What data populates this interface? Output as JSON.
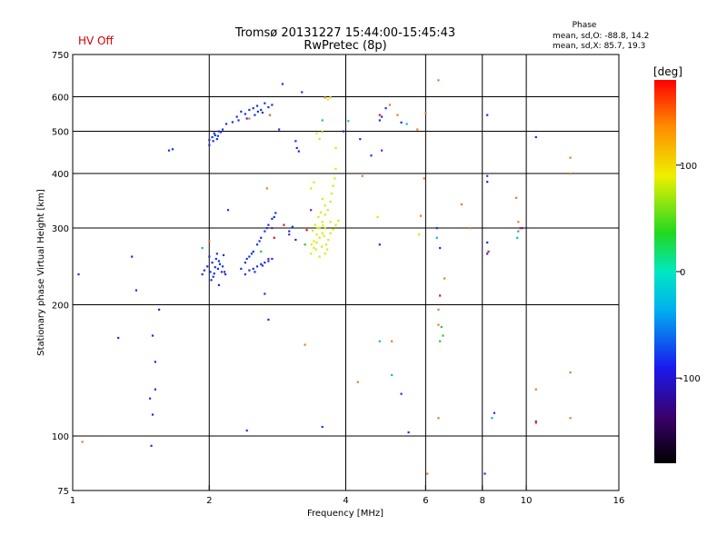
{
  "header": {
    "status": "HV Off",
    "status_color": "#d40000",
    "title_line1": "Tromsø 20131227 15:44:00-15:45:43",
    "title_line2": "RwPretec (8p)",
    "phase_title": "Phase",
    "phase_o": "mean, sd,O: -88.8, 14.2",
    "phase_x": "mean, sd,X:  85.7, 19.3"
  },
  "chart_data": {
    "type": "scatter",
    "xlabel": "Frequency [MHz]",
    "ylabel": "Stationary phase Virtual Height [km]",
    "x_scale": "log2",
    "y_scale": "log",
    "xlim": [
      1,
      16
    ],
    "ylim": [
      75,
      750
    ],
    "x_ticks": [
      1,
      2,
      4,
      6,
      8,
      10,
      16
    ],
    "y_ticks": [
      75,
      100,
      200,
      300,
      400,
      500,
      600,
      750
    ],
    "x_grid": [
      2,
      4,
      6,
      8,
      10
    ],
    "y_grid": [
      100,
      200,
      300,
      400,
      500,
      600
    ],
    "colorbar": {
      "label": "[deg]",
      "ticks": [
        100,
        0,
        -100
      ],
      "range": [
        -180,
        180
      ]
    },
    "series": [
      {
        "color": "#1530e0",
        "points": [
          [
            1.03,
            235
          ],
          [
            1.26,
            168
          ],
          [
            1.35,
            258
          ],
          [
            1.38,
            216
          ],
          [
            1.49,
            95
          ],
          [
            1.5,
            170
          ],
          [
            1.5,
            112
          ],
          [
            1.52,
            148
          ],
          [
            1.52,
            128
          ],
          [
            1.48,
            122
          ],
          [
            1.55,
            195
          ],
          [
            1.63,
            452
          ],
          [
            1.66,
            455
          ],
          [
            1.93,
            235
          ],
          [
            1.95,
            240
          ],
          [
            1.98,
            245
          ],
          [
            2.01,
            238
          ],
          [
            2.03,
            250
          ],
          [
            2.05,
            236
          ],
          [
            2.07,
            255
          ],
          [
            2.09,
            242
          ],
          [
            2.11,
            248
          ],
          [
            2.13,
            238
          ],
          [
            2.15,
            260
          ],
          [
            2.17,
            235
          ],
          [
            2.0,
            258
          ],
          [
            2.04,
            232
          ],
          [
            2.1,
            252
          ],
          [
            2.14,
            245
          ],
          [
            2.16,
            238
          ],
          [
            2.08,
            262
          ],
          [
            2.02,
            228
          ],
          [
            2.06,
            244
          ],
          [
            2.0,
            478
          ],
          [
            2.03,
            485
          ],
          [
            2.06,
            490
          ],
          [
            2.09,
            488
          ],
          [
            2.12,
            498
          ],
          [
            2.05,
            495
          ],
          [
            2.1,
            500
          ],
          [
            2.14,
            505
          ],
          [
            2.18,
            520
          ],
          [
            2.0,
            465
          ],
          [
            2.04,
            475
          ],
          [
            2.08,
            480
          ],
          [
            2.25,
            525
          ],
          [
            2.3,
            540
          ],
          [
            2.35,
            555
          ],
          [
            2.4,
            548
          ],
          [
            2.45,
            560
          ],
          [
            2.5,
            565
          ],
          [
            2.55,
            572
          ],
          [
            2.6,
            560
          ],
          [
            2.65,
            580
          ],
          [
            2.7,
            568
          ],
          [
            2.75,
            575
          ],
          [
            2.32,
            530
          ],
          [
            2.42,
            535
          ],
          [
            2.52,
            545
          ],
          [
            2.62,
            552
          ],
          [
            2.72,
            545
          ],
          [
            2.56,
            555
          ],
          [
            2.35,
            242
          ],
          [
            2.4,
            250
          ],
          [
            2.45,
            258
          ],
          [
            2.5,
            265
          ],
          [
            2.55,
            275
          ],
          [
            2.6,
            285
          ],
          [
            2.65,
            295
          ],
          [
            2.7,
            305
          ],
          [
            2.75,
            315
          ],
          [
            2.8,
            325
          ],
          [
            2.48,
            262
          ],
          [
            2.58,
            280
          ],
          [
            2.68,
            300
          ],
          [
            2.78,
            318
          ],
          [
            2.42,
            255
          ],
          [
            2.4,
            235
          ],
          [
            2.45,
            240
          ],
          [
            2.5,
            242
          ],
          [
            2.55,
            245
          ],
          [
            2.6,
            248
          ],
          [
            2.65,
            250
          ],
          [
            2.7,
            252
          ],
          [
            2.75,
            255
          ],
          [
            2.52,
            238
          ],
          [
            2.62,
            246
          ],
          [
            2.2,
            330
          ],
          [
            2.1,
            222
          ],
          [
            2.65,
            212
          ],
          [
            2.7,
            185
          ],
          [
            2.9,
            642
          ],
          [
            3.1,
            475
          ],
          [
            3.12,
            458
          ],
          [
            3.15,
            450
          ],
          [
            3.05,
            302
          ],
          [
            3.0,
            295
          ],
          [
            3.1,
            282
          ],
          [
            3.2,
            615
          ],
          [
            2.85,
            505
          ],
          [
            2.42,
            103
          ],
          [
            3.55,
            105
          ],
          [
            3.95,
            500
          ],
          [
            4.3,
            480
          ],
          [
            4.55,
            440
          ],
          [
            4.75,
            530
          ],
          [
            4.8,
            540
          ],
          [
            4.9,
            565
          ],
          [
            5.3,
            524
          ],
          [
            4.75,
            275
          ],
          [
            5.3,
            125
          ],
          [
            5.5,
            102
          ],
          [
            6.35,
            300
          ],
          [
            6.45,
            270
          ],
          [
            8.2,
            545
          ],
          [
            8.2,
            383
          ],
          [
            8.2,
            278
          ],
          [
            8.2,
            262
          ],
          [
            8.5,
            113
          ],
          [
            8.1,
            82
          ],
          [
            10.5,
            485
          ]
        ]
      },
      {
        "color": "#d4ee00",
        "points": [
          [
            3.35,
            262
          ],
          [
            3.4,
            270
          ],
          [
            3.45,
            278
          ],
          [
            3.5,
            285
          ],
          [
            3.55,
            292
          ],
          [
            3.6,
            300
          ],
          [
            3.4,
            280
          ],
          [
            3.45,
            290
          ],
          [
            3.5,
            300
          ],
          [
            3.55,
            310
          ],
          [
            3.6,
            322
          ],
          [
            3.38,
            296
          ],
          [
            3.42,
            305
          ],
          [
            3.48,
            318
          ],
          [
            3.52,
            326
          ],
          [
            3.58,
            288
          ],
          [
            3.62,
            275
          ],
          [
            3.66,
            282
          ],
          [
            3.7,
            292
          ],
          [
            3.75,
            298
          ],
          [
            3.8,
            305
          ],
          [
            3.85,
            312
          ],
          [
            3.44,
            268
          ],
          [
            3.54,
            272
          ],
          [
            3.64,
            268
          ],
          [
            3.46,
            300
          ],
          [
            3.56,
            304
          ],
          [
            3.36,
            275
          ],
          [
            3.5,
            258
          ],
          [
            3.6,
            262
          ],
          [
            3.7,
            310
          ],
          [
            3.7,
            345
          ],
          [
            3.72,
            360
          ],
          [
            3.75,
            375
          ],
          [
            3.78,
            390
          ],
          [
            3.8,
            410
          ],
          [
            3.55,
            350
          ],
          [
            3.6,
            338
          ],
          [
            3.65,
            330
          ],
          [
            3.35,
            370
          ],
          [
            3.4,
            382
          ],
          [
            3.65,
            592
          ],
          [
            3.7,
            598
          ],
          [
            3.8,
            458
          ],
          [
            3.5,
            480
          ],
          [
            3.55,
            498
          ],
          [
            3.45,
            495
          ],
          [
            4.7,
            318
          ],
          [
            5.8,
            290
          ]
        ]
      },
      {
        "color": "#e87a2a",
        "points": [
          [
            1.05,
            97
          ],
          [
            2.0,
            280
          ],
          [
            2.45,
            535
          ],
          [
            2.68,
            370
          ],
          [
            2.72,
            545
          ],
          [
            3.25,
            162
          ],
          [
            3.6,
            598
          ],
          [
            4.35,
            395
          ],
          [
            4.25,
            133
          ],
          [
            5.05,
            165
          ],
          [
            5.0,
            575
          ],
          [
            5.2,
            545
          ],
          [
            5.75,
            505
          ],
          [
            5.85,
            320
          ],
          [
            5.95,
            390
          ],
          [
            6.0,
            550
          ],
          [
            6.05,
            82
          ],
          [
            6.4,
            655
          ],
          [
            6.4,
            195
          ],
          [
            6.4,
            180
          ],
          [
            6.4,
            110
          ],
          [
            6.6,
            230
          ],
          [
            7.2,
            340
          ],
          [
            7.5,
            300
          ],
          [
            9.5,
            352
          ],
          [
            9.6,
            310
          ],
          [
            10.5,
            128
          ],
          [
            10.5,
            107
          ],
          [
            12.5,
            435
          ],
          [
            12.5,
            400
          ],
          [
            12.5,
            140
          ],
          [
            12.5,
            110
          ]
        ]
      },
      {
        "color": "#00bcd4",
        "points": [
          [
            1.93,
            270
          ],
          [
            3.55,
            530
          ],
          [
            4.05,
            528
          ],
          [
            4.75,
            165
          ],
          [
            5.05,
            138
          ],
          [
            5.45,
            520
          ],
          [
            6.35,
            285
          ],
          [
            8.4,
            110
          ],
          [
            9.6,
            295
          ],
          [
            9.55,
            285
          ]
        ]
      },
      {
        "color": "#2ec22e",
        "points": [
          [
            2.6,
            265
          ],
          [
            3.25,
            275
          ],
          [
            6.45,
            165
          ],
          [
            6.5,
            178
          ],
          [
            6.55,
            170
          ]
        ]
      },
      {
        "color": "#7a1ab8",
        "points": [
          [
            2.75,
            300
          ],
          [
            2.7,
            255
          ],
          [
            3.0,
            290
          ],
          [
            3.35,
            330
          ],
          [
            4.8,
            452
          ],
          [
            8.2,
            395
          ],
          [
            9.8,
            300
          ],
          [
            10.5,
            108
          ]
        ]
      },
      {
        "color": "#e81010",
        "points": [
          [
            2.78,
            285
          ],
          [
            2.92,
            305
          ],
          [
            3.28,
            297
          ],
          [
            4.75,
            545
          ],
          [
            6.45,
            210
          ],
          [
            8.25,
            265
          ],
          [
            9.7,
            300
          ]
        ]
      }
    ]
  }
}
